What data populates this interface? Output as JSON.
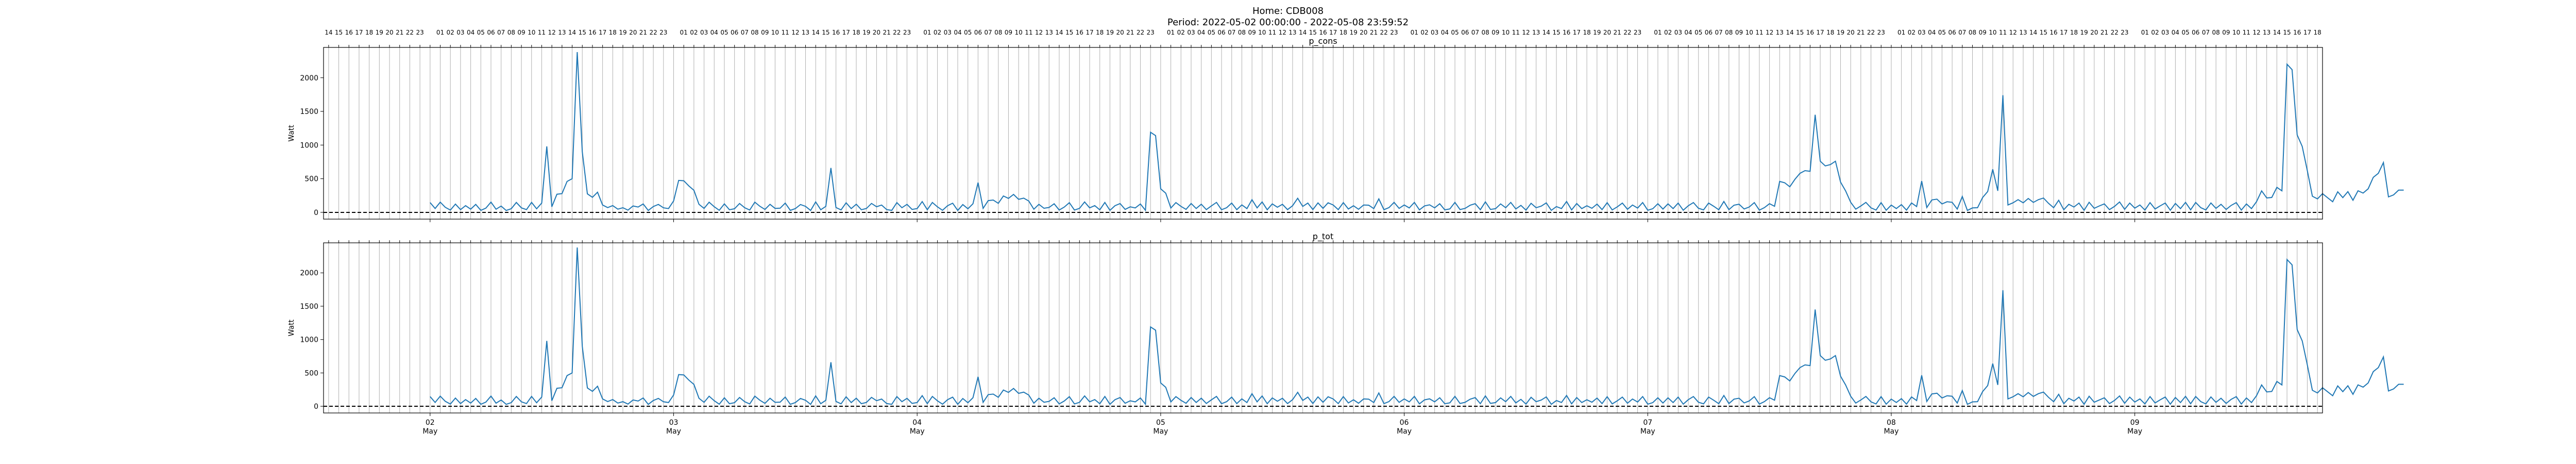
{
  "figure": {
    "title_line1": "Home: CDB008",
    "title_line2": "Period: 2022-05-02 00:00:00 - 2022-05-08 23:59:52"
  },
  "chart_data": [
    {
      "type": "line",
      "title": "p_cons",
      "ylabel": "Watt",
      "xlabel": "",
      "x_start": "2022-05-02 00:00",
      "x_step_hours": 0.5,
      "ylim": [
        -100,
        2450
      ],
      "yticks": [
        0,
        500,
        1000,
        1500,
        2000
      ],
      "xlim_hours_from_start": [
        -10.5,
        186.5
      ],
      "reference_line": {
        "y": 0,
        "style": "dashed",
        "color": "#000000"
      },
      "grid": "vertical hourly",
      "series": [
        {
          "color": "#1f77b4",
          "values": [
            146,
            58,
            152,
            75,
            34,
            123,
            41,
            100,
            48,
            118,
            30,
            63,
            153,
            47,
            94,
            29,
            55,
            147,
            67,
            41,
            148,
            53,
            139,
            980,
            84,
            270,
            278,
            460,
            500,
            2380,
            900,
            275,
            224,
            300,
            110,
            71,
            101,
            48,
            69,
            33,
            95,
            79,
            125,
            29,
            87,
            118,
            68,
            56,
            170,
            475,
            470,
            393,
            328,
            120,
            59,
            151,
            84,
            31,
            127,
            39,
            54,
            132,
            69,
            35,
            152,
            91,
            44,
            120,
            59,
            62,
            138,
            30,
            56,
            117,
            90,
            29,
            156,
            39,
            89,
            660,
            72,
            37,
            143,
            56,
            121,
            39,
            58,
            133,
            84,
            109,
            41,
            30,
            146,
            69,
            119,
            44,
            56,
            160,
            39,
            147,
            82,
            31,
            99,
            137,
            29,
            116,
            54,
            128,
            442,
            59,
            175,
            183,
            134,
            244,
            208,
            267,
            194,
            212,
            169,
            47,
            120,
            61,
            73,
            128,
            35,
            79,
            144,
            35,
            59,
            155,
            67,
            101,
            38,
            147,
            30,
            99,
            131,
            45,
            82,
            66,
            125,
            31,
            1190,
            1140,
            350,
            285,
            65,
            145,
            89,
            45,
            132,
            58,
            121,
            42,
            97,
            148,
            39,
            69,
            138,
            41,
            111,
            56,
            189,
            67,
            155,
            39,
            126,
            76,
            120,
            41,
            99,
            209,
            88,
            138,
            42,
            141,
            60,
            143,
            110,
            41,
            145,
            50,
            98,
            46,
            110,
            107,
            56,
            200,
            40,
            71,
            149,
            59,
            110,
            66,
            148,
            37,
            96,
            112,
            67,
            128,
            38,
            52,
            149,
            42,
            59,
            106,
            130,
            39,
            156,
            44,
            55,
            126,
            69,
            148,
            51,
            104,
            33,
            135,
            69,
            93,
            141,
            30,
            86,
            57,
            162,
            37,
            131,
            56,
            98,
            61,
            123,
            41,
            144,
            36,
            82,
            138,
            46,
            109,
            64,
            146,
            32,
            55,
            128,
            49,
            127,
            56,
            138,
            32,
            99,
            146,
            61,
            37,
            138,
            91,
            39,
            162,
            41,
            107,
            121,
            51,
            80,
            145,
            33,
            71,
            129,
            91,
            460,
            440,
            380,
            490,
            580,
            620,
            610,
            1450,
            760,
            690,
            710,
            760,
            450,
            320,
            150,
            48,
            95,
            148,
            67,
            35,
            145,
            32,
            108,
            57,
            115,
            33,
            140,
            86,
            465,
            72,
            185,
            196,
            125,
            158,
            150,
            49,
            236,
            29,
            66,
            69,
            220,
            310,
            640,
            320,
            1740,
            110,
            143,
            189,
            142,
            206,
            148,
            189,
            213,
            134,
            69,
            180,
            39,
            120,
            79,
            138,
            30,
            150,
            61,
            95,
            127,
            41,
            88,
            155,
            45,
            138,
            63,
            110,
            35,
            145,
            50,
            97,
            139,
            32,
            132,
            56,
            149,
            38,
            147,
            70,
            36,
            140,
            59,
            120,
            43,
            104,
            145,
            34,
            125,
            56,
            160,
            320,
            215,
            222,
            372,
            320,
            2200,
            2120,
            1150,
            980,
            620,
            240,
            200,
            278,
            218,
            158,
            306,
            219,
            308,
            180,
            321,
            287,
            350,
            520,
            580,
            740,
            230,
            260,
            330,
            330
          ]
        }
      ]
    },
    {
      "type": "line",
      "title": "p_tot",
      "ylabel": "Watt",
      "xlabel": "",
      "x_start": "2022-05-02 00:00",
      "x_step_hours": 0.5,
      "ylim": [
        -100,
        2450
      ],
      "yticks": [
        0,
        500,
        1000,
        1500,
        2000
      ],
      "xlim_hours_from_start": [
        -10.5,
        186.5
      ],
      "reference_line": {
        "y": 0,
        "style": "dashed",
        "color": "#000000"
      },
      "grid": "vertical hourly",
      "series": [
        {
          "color": "#1f77b4",
          "values": [
            146,
            58,
            152,
            75,
            34,
            123,
            41,
            100,
            48,
            118,
            30,
            63,
            153,
            47,
            94,
            29,
            55,
            147,
            67,
            41,
            148,
            53,
            139,
            980,
            84,
            270,
            278,
            460,
            500,
            2380,
            900,
            275,
            224,
            300,
            110,
            71,
            101,
            48,
            69,
            33,
            95,
            79,
            125,
            29,
            87,
            118,
            68,
            56,
            170,
            475,
            470,
            393,
            328,
            120,
            59,
            151,
            84,
            31,
            127,
            39,
            54,
            132,
            69,
            35,
            152,
            91,
            44,
            120,
            59,
            62,
            138,
            30,
            56,
            117,
            90,
            29,
            156,
            39,
            89,
            660,
            72,
            37,
            143,
            56,
            121,
            39,
            58,
            133,
            84,
            109,
            41,
            30,
            146,
            69,
            119,
            44,
            56,
            160,
            39,
            147,
            82,
            31,
            99,
            137,
            29,
            116,
            54,
            128,
            442,
            59,
            175,
            183,
            134,
            244,
            208,
            267,
            194,
            212,
            169,
            47,
            120,
            61,
            73,
            128,
            35,
            79,
            144,
            35,
            59,
            155,
            67,
            101,
            38,
            147,
            30,
            99,
            131,
            45,
            82,
            66,
            125,
            31,
            1190,
            1140,
            350,
            285,
            65,
            145,
            89,
            45,
            132,
            58,
            121,
            42,
            97,
            148,
            39,
            69,
            138,
            41,
            111,
            56,
            189,
            67,
            155,
            39,
            126,
            76,
            120,
            41,
            99,
            209,
            88,
            138,
            42,
            141,
            60,
            143,
            110,
            41,
            145,
            50,
            98,
            46,
            110,
            107,
            56,
            200,
            40,
            71,
            149,
            59,
            110,
            66,
            148,
            37,
            96,
            112,
            67,
            128,
            38,
            52,
            149,
            42,
            59,
            106,
            130,
            39,
            156,
            44,
            55,
            126,
            69,
            148,
            51,
            104,
            33,
            135,
            69,
            93,
            141,
            30,
            86,
            57,
            162,
            37,
            131,
            56,
            98,
            61,
            123,
            41,
            144,
            36,
            82,
            138,
            46,
            109,
            64,
            146,
            32,
            55,
            128,
            49,
            127,
            56,
            138,
            32,
            99,
            146,
            61,
            37,
            138,
            91,
            39,
            162,
            41,
            107,
            121,
            51,
            80,
            145,
            33,
            71,
            129,
            91,
            460,
            440,
            380,
            490,
            580,
            620,
            610,
            1450,
            760,
            690,
            710,
            760,
            450,
            320,
            150,
            48,
            95,
            148,
            67,
            35,
            145,
            32,
            108,
            57,
            115,
            33,
            140,
            86,
            465,
            72,
            185,
            196,
            125,
            158,
            150,
            49,
            236,
            29,
            66,
            69,
            220,
            310,
            640,
            320,
            1740,
            110,
            143,
            189,
            142,
            206,
            148,
            189,
            213,
            134,
            69,
            180,
            39,
            120,
            79,
            138,
            30,
            150,
            61,
            95,
            127,
            41,
            88,
            155,
            45,
            138,
            63,
            110,
            35,
            145,
            50,
            97,
            139,
            32,
            132,
            56,
            149,
            38,
            147,
            70,
            36,
            140,
            59,
            120,
            43,
            104,
            145,
            34,
            125,
            56,
            160,
            320,
            215,
            222,
            372,
            320,
            2200,
            2120,
            1150,
            980,
            620,
            240,
            200,
            278,
            218,
            158,
            306,
            219,
            308,
            180,
            321,
            287,
            350,
            520,
            580,
            740,
            230,
            260,
            330,
            330
          ]
        }
      ]
    }
  ],
  "x_axis": {
    "top_hour_labels": [
      "16",
      "17",
      "18",
      "19",
      "20",
      "21",
      "22",
      "23",
      "01",
      "02",
      "03",
      "04",
      "05",
      "06",
      "07",
      "08",
      "09",
      "10",
      "11",
      "12",
      "13",
      "14",
      "15",
      "16",
      "17",
      "18",
      "19",
      "20",
      "21",
      "22",
      "23"
    ],
    "bottom_day_labels": [
      "02",
      "03",
      "04",
      "05",
      "06",
      "07",
      "08",
      "09"
    ],
    "bottom_month_label": "May"
  }
}
